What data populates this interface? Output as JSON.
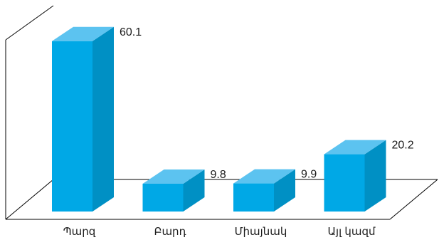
{
  "chart_data": {
    "type": "bar",
    "style": "3d",
    "categories": [
      "Պարզ",
      "Բարդ",
      "Միայնակ",
      "Այլ կազմ"
    ],
    "values": [
      60.1,
      9.8,
      9.9,
      20.2
    ],
    "data_labels": [
      "60.1",
      "9.8",
      "9.9",
      "20.2"
    ],
    "title": "",
    "xlabel": "",
    "ylabel": "",
    "ylim": [
      0,
      60.1
    ],
    "grid": false,
    "legend": "none",
    "colors": {
      "front": "#00a8e6",
      "side": "#0090c4",
      "top": "#5cc3f0"
    }
  }
}
